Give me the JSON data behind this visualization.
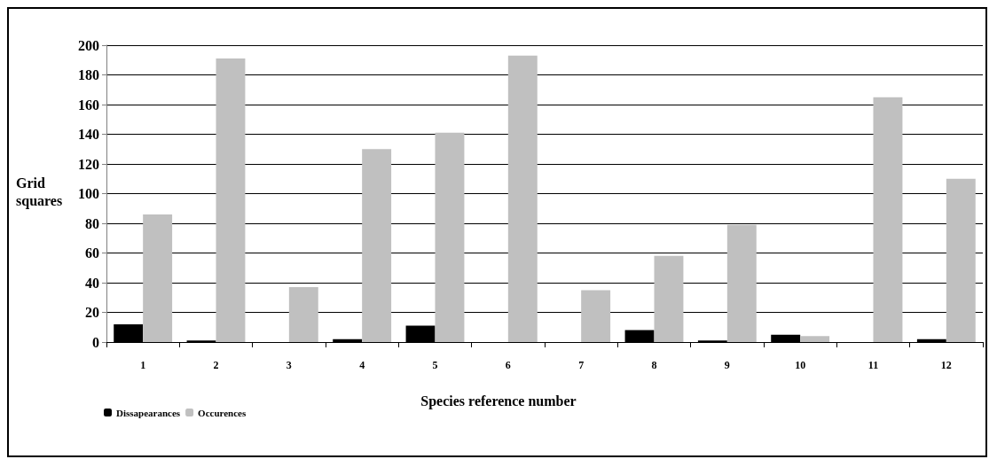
{
  "chart_data": {
    "type": "bar",
    "xlabel": "Species reference number",
    "ylabel": "Grid squares",
    "categories": [
      "1",
      "2",
      "3",
      "4",
      "5",
      "6",
      "7",
      "8",
      "9",
      "10",
      "11",
      "12"
    ],
    "series": [
      {
        "name": "Dissapearances",
        "color": "#000000",
        "values": [
          12,
          1,
          0,
          2,
          11,
          0,
          0,
          8,
          1,
          5,
          0,
          2
        ]
      },
      {
        "name": "Occurences",
        "color": "#c0c0c0",
        "values": [
          86,
          191,
          37,
          130,
          141,
          193,
          35,
          58,
          79,
          4,
          165,
          110
        ]
      }
    ],
    "ylim": [
      0,
      200
    ],
    "yticks": [
      0,
      20,
      40,
      60,
      80,
      100,
      120,
      140,
      160,
      180,
      200
    ],
    "grid": "y",
    "legend": "bottom left"
  }
}
